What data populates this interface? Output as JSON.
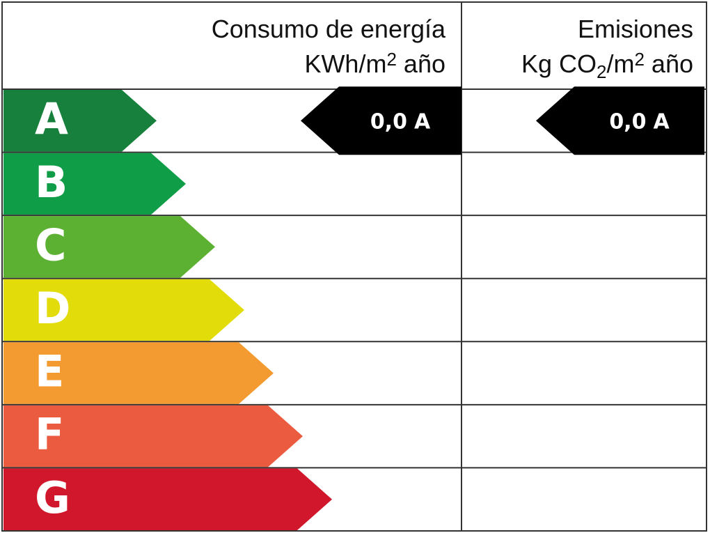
{
  "header": {
    "consumption": {
      "title": "Consumo de energía",
      "unit_pre": "KWh/m",
      "unit_sup": "2",
      "unit_post": " año"
    },
    "emissions": {
      "title": "Emisiones",
      "unit_pre": "Kg CO",
      "unit_sub": "2",
      "unit_mid": "/m",
      "unit_sup": "2",
      "unit_post": " año"
    }
  },
  "ratings": [
    {
      "letter": "A",
      "color": "#16803c"
    },
    {
      "letter": "B",
      "color": "#0f9d48"
    },
    {
      "letter": "C",
      "color": "#5cb132"
    },
    {
      "letter": "D",
      "color": "#e3dc0b"
    },
    {
      "letter": "E",
      "color": "#f39a30"
    },
    {
      "letter": "F",
      "color": "#ea5b3f"
    },
    {
      "letter": "G",
      "color": "#d0172b"
    }
  ],
  "indicators": {
    "consumption": {
      "value": "0,0",
      "rating": "A"
    },
    "emissions": {
      "value": "0,0",
      "rating": "A"
    }
  }
}
